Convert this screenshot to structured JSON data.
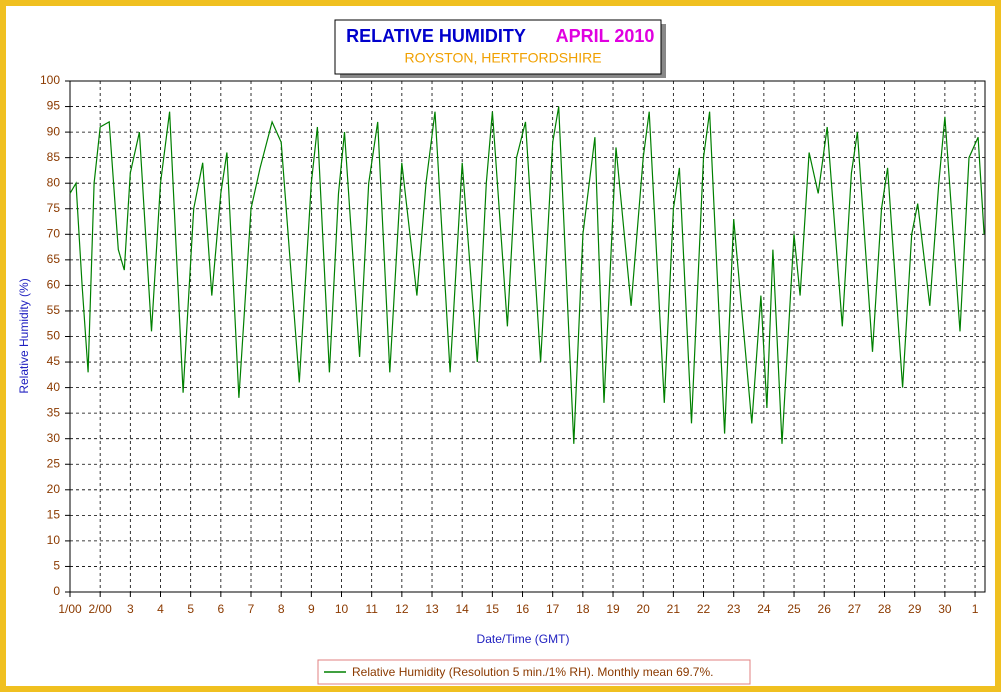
{
  "chart_data": {
    "type": "line",
    "title": "RELATIVE HUMIDITY",
    "title_date": "APRIL 2010",
    "subtitle": "ROYSTON, HERTFORDSHIRE",
    "x_label": "Date/Time (GMT)",
    "y_label": "Relative Humidity (%)",
    "xlim": [
      0,
      30.33
    ],
    "ylim": [
      0,
      100
    ],
    "xticks": [
      {
        "value": 0,
        "label": "1/00"
      },
      {
        "value": 1,
        "label": "2/00"
      },
      {
        "value": 2,
        "label": "3"
      },
      {
        "value": 3,
        "label": "4"
      },
      {
        "value": 4,
        "label": "5"
      },
      {
        "value": 5,
        "label": "6"
      },
      {
        "value": 6,
        "label": "7"
      },
      {
        "value": 7,
        "label": "8"
      },
      {
        "value": 8,
        "label": "9"
      },
      {
        "value": 9,
        "label": "10"
      },
      {
        "value": 10,
        "label": "11"
      },
      {
        "value": 11,
        "label": "12"
      },
      {
        "value": 12,
        "label": "13"
      },
      {
        "value": 13,
        "label": "14"
      },
      {
        "value": 14,
        "label": "15"
      },
      {
        "value": 15,
        "label": "16"
      },
      {
        "value": 16,
        "label": "17"
      },
      {
        "value": 17,
        "label": "18"
      },
      {
        "value": 18,
        "label": "19"
      },
      {
        "value": 19,
        "label": "20"
      },
      {
        "value": 20,
        "label": "21"
      },
      {
        "value": 21,
        "label": "22"
      },
      {
        "value": 22,
        "label": "23"
      },
      {
        "value": 23,
        "label": "24"
      },
      {
        "value": 24,
        "label": "25"
      },
      {
        "value": 25,
        "label": "26"
      },
      {
        "value": 26,
        "label": "27"
      },
      {
        "value": 27,
        "label": "28"
      },
      {
        "value": 28,
        "label": "29"
      },
      {
        "value": 29,
        "label": "30"
      },
      {
        "value": 30,
        "label": "1"
      }
    ],
    "yticks": [
      0,
      5,
      10,
      15,
      20,
      25,
      30,
      35,
      40,
      45,
      50,
      55,
      60,
      65,
      70,
      75,
      80,
      85,
      90,
      95,
      100
    ],
    "grid": true,
    "legend": "bottom",
    "series": [
      {
        "name": "Relative Humidity (Resolution 5 min./1% RH). Monthly mean 69.7%.",
        "color": "#008000",
        "x": [
          0,
          0.2,
          0.4,
          0.6,
          0.8,
          1.0,
          1.3,
          1.6,
          1.8,
          2.0,
          2.3,
          2.7,
          3.0,
          3.3,
          3.75,
          4.1,
          4.4,
          4.7,
          5.0,
          5.2,
          5.6,
          6.0,
          6.3,
          6.7,
          7.0,
          7.6,
          8.0,
          8.2,
          8.6,
          8.9,
          9.1,
          9.6,
          9.9,
          10.2,
          10.6,
          11.0,
          11.5,
          11.8,
          12.1,
          12.6,
          13.0,
          13.5,
          13.8,
          14.0,
          14.5,
          14.8,
          15.1,
          15.6,
          16.0,
          16.2,
          16.7,
          17.0,
          17.4,
          17.7,
          18.1,
          18.6,
          19.0,
          19.2,
          19.7,
          20.0,
          20.2,
          20.6,
          21.0,
          21.2,
          21.7,
          22.0,
          22.6,
          22.9,
          23.1,
          23.3,
          23.6,
          24.0,
          24.2,
          24.5,
          24.8,
          25.1,
          25.6,
          25.9,
          26.1,
          26.6,
          26.9,
          27.1,
          27.6,
          27.9,
          28.1,
          28.5,
          28.8,
          29.0,
          29.5,
          29.8,
          30.1,
          30.3
        ],
        "values": [
          78,
          80,
          60,
          43,
          80,
          91,
          92,
          67,
          63,
          82,
          90,
          51,
          80,
          94,
          39,
          75,
          84,
          58,
          78,
          86,
          38,
          75,
          83,
          92,
          88,
          41,
          80,
          91,
          43,
          78,
          90,
          46,
          80,
          92,
          43,
          84,
          58,
          80,
          94,
          43,
          84,
          45,
          80,
          94,
          52,
          85,
          92,
          45,
          88,
          95,
          29,
          70,
          89,
          37,
          87,
          56,
          85,
          94,
          37,
          75,
          83,
          33,
          85,
          94,
          31,
          73,
          33,
          58,
          36,
          67,
          29,
          70,
          58,
          86,
          78,
          91,
          52,
          82,
          90,
          47,
          75,
          83,
          40,
          70,
          76,
          56,
          80,
          93,
          51,
          85,
          89,
          70
        ]
      }
    ]
  }
}
